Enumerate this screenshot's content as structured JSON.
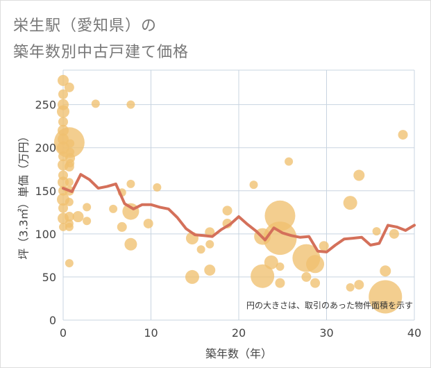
{
  "title": {
    "line1": "栄生駅（愛知県）の",
    "line2": "築年数別中古戸建て価格"
  },
  "chart_data": {
    "type": "scatter",
    "xlabel": "築年数（年）",
    "ylabel": "坪（3.3㎡）単価（万円）",
    "xlim": [
      0,
      40
    ],
    "ylim": [
      0,
      290
    ],
    "x_ticks": [
      0,
      10,
      20,
      30,
      40
    ],
    "y_ticks": [
      0,
      50,
      100,
      150,
      200,
      250
    ],
    "grid": true,
    "note": "円の大きさは、取引のあった物件面積を示す",
    "colors": {
      "bubble": "#f0c070",
      "line": "#d4705a",
      "grid": "#c8d4e0"
    },
    "bubbles": [
      {
        "x": 0,
        "y": 278,
        "s": 8
      },
      {
        "x": 0,
        "y": 262,
        "s": 7
      },
      {
        "x": 0,
        "y": 250,
        "s": 8
      },
      {
        "x": 0,
        "y": 242,
        "s": 9
      },
      {
        "x": 0,
        "y": 230,
        "s": 7
      },
      {
        "x": 0,
        "y": 220,
        "s": 8
      },
      {
        "x": 0,
        "y": 210,
        "s": 8
      },
      {
        "x": 0,
        "y": 200,
        "s": 9
      },
      {
        "x": 0,
        "y": 190,
        "s": 7
      },
      {
        "x": 0,
        "y": 180,
        "s": 8
      },
      {
        "x": 0,
        "y": 168,
        "s": 7
      },
      {
        "x": 0,
        "y": 160,
        "s": 8
      },
      {
        "x": 0,
        "y": 150,
        "s": 7
      },
      {
        "x": 0,
        "y": 140,
        "s": 9
      },
      {
        "x": 0,
        "y": 130,
        "s": 7
      },
      {
        "x": 0,
        "y": 118,
        "s": 8
      },
      {
        "x": 0,
        "y": 108,
        "s": 6
      },
      {
        "x": 0.7,
        "y": 270,
        "s": 7
      },
      {
        "x": 0.7,
        "y": 206,
        "s": 22
      },
      {
        "x": 0.8,
        "y": 205,
        "s": 6
      },
      {
        "x": 0.8,
        "y": 195,
        "s": 6
      },
      {
        "x": 0.8,
        "y": 188,
        "s": 7
      },
      {
        "x": 0.8,
        "y": 182,
        "s": 6
      },
      {
        "x": 0.7,
        "y": 178,
        "s": 7
      },
      {
        "x": 0.7,
        "y": 160,
        "s": 6
      },
      {
        "x": 0.7,
        "y": 150,
        "s": 7
      },
      {
        "x": 0.7,
        "y": 137,
        "s": 6
      },
      {
        "x": 0.7,
        "y": 120,
        "s": 7
      },
      {
        "x": 0.7,
        "y": 112,
        "s": 6
      },
      {
        "x": 0.7,
        "y": 108,
        "s": 6
      },
      {
        "x": 0.7,
        "y": 66,
        "s": 6
      },
      {
        "x": 1.7,
        "y": 120,
        "s": 8
      },
      {
        "x": 2.7,
        "y": 131,
        "s": 6
      },
      {
        "x": 2.7,
        "y": 115,
        "s": 6
      },
      {
        "x": 3.7,
        "y": 251,
        "s": 6
      },
      {
        "x": 5.7,
        "y": 129,
        "s": 6
      },
      {
        "x": 6.7,
        "y": 148,
        "s": 6
      },
      {
        "x": 6.7,
        "y": 108,
        "s": 7
      },
      {
        "x": 7.7,
        "y": 250,
        "s": 6
      },
      {
        "x": 7.7,
        "y": 158,
        "s": 6
      },
      {
        "x": 7.7,
        "y": 126,
        "s": 12
      },
      {
        "x": 7.7,
        "y": 88,
        "s": 9
      },
      {
        "x": 9.7,
        "y": 112,
        "s": 7
      },
      {
        "x": 10.7,
        "y": 154,
        "s": 6
      },
      {
        "x": 14.7,
        "y": 95,
        "s": 9
      },
      {
        "x": 14.7,
        "y": 50,
        "s": 10
      },
      {
        "x": 15.7,
        "y": 82,
        "s": 6
      },
      {
        "x": 16.7,
        "y": 102,
        "s": 7
      },
      {
        "x": 16.7,
        "y": 88,
        "s": 6
      },
      {
        "x": 16.7,
        "y": 58,
        "s": 8
      },
      {
        "x": 18.7,
        "y": 127,
        "s": 7
      },
      {
        "x": 18.7,
        "y": 112,
        "s": 7
      },
      {
        "x": 21.7,
        "y": 157,
        "s": 6
      },
      {
        "x": 22.7,
        "y": 97,
        "s": 12
      },
      {
        "x": 22.7,
        "y": 51,
        "s": 17
      },
      {
        "x": 23.7,
        "y": 67,
        "s": 10
      },
      {
        "x": 24.7,
        "y": 121,
        "s": 22
      },
      {
        "x": 24.7,
        "y": 95,
        "s": 24
      },
      {
        "x": 24.7,
        "y": 62,
        "s": 6
      },
      {
        "x": 24.7,
        "y": 43,
        "s": 7
      },
      {
        "x": 25.7,
        "y": 184,
        "s": 6
      },
      {
        "x": 27.7,
        "y": 50,
        "s": 7
      },
      {
        "x": 27.7,
        "y": 72,
        "s": 20
      },
      {
        "x": 28.7,
        "y": 65,
        "s": 13
      },
      {
        "x": 28.7,
        "y": 43,
        "s": 7
      },
      {
        "x": 29.7,
        "y": 86,
        "s": 7
      },
      {
        "x": 32.7,
        "y": 136,
        "s": 10
      },
      {
        "x": 32.7,
        "y": 38,
        "s": 6
      },
      {
        "x": 33.7,
        "y": 168,
        "s": 8
      },
      {
        "x": 33.7,
        "y": 41,
        "s": 7
      },
      {
        "x": 35.7,
        "y": 103,
        "s": 6
      },
      {
        "x": 36.7,
        "y": 27,
        "s": 24
      },
      {
        "x": 36.7,
        "y": 57,
        "s": 8
      },
      {
        "x": 37.7,
        "y": 100,
        "s": 7
      },
      {
        "x": 38.7,
        "y": 215,
        "s": 7
      }
    ],
    "series": [
      {
        "x": [
          0,
          1,
          2,
          3,
          4,
          5,
          6,
          7,
          8,
          9,
          10,
          11,
          12,
          13,
          14,
          15,
          16,
          17,
          18,
          19,
          20,
          21,
          22,
          23,
          24,
          25,
          26,
          27,
          28,
          29,
          30,
          31,
          32,
          33,
          34,
          35,
          36,
          37,
          38,
          39,
          40
        ],
        "values": [
          153,
          149,
          169,
          163,
          153,
          155,
          158,
          135,
          129,
          134,
          134,
          131,
          129,
          119,
          106,
          99,
          98,
          97,
          105,
          111,
          120,
          111,
          103,
          93,
          107,
          101,
          98,
          96,
          97,
          80,
          79,
          87,
          94,
          95,
          96,
          87,
          89,
          110,
          108,
          104,
          110
        ]
      }
    ]
  }
}
